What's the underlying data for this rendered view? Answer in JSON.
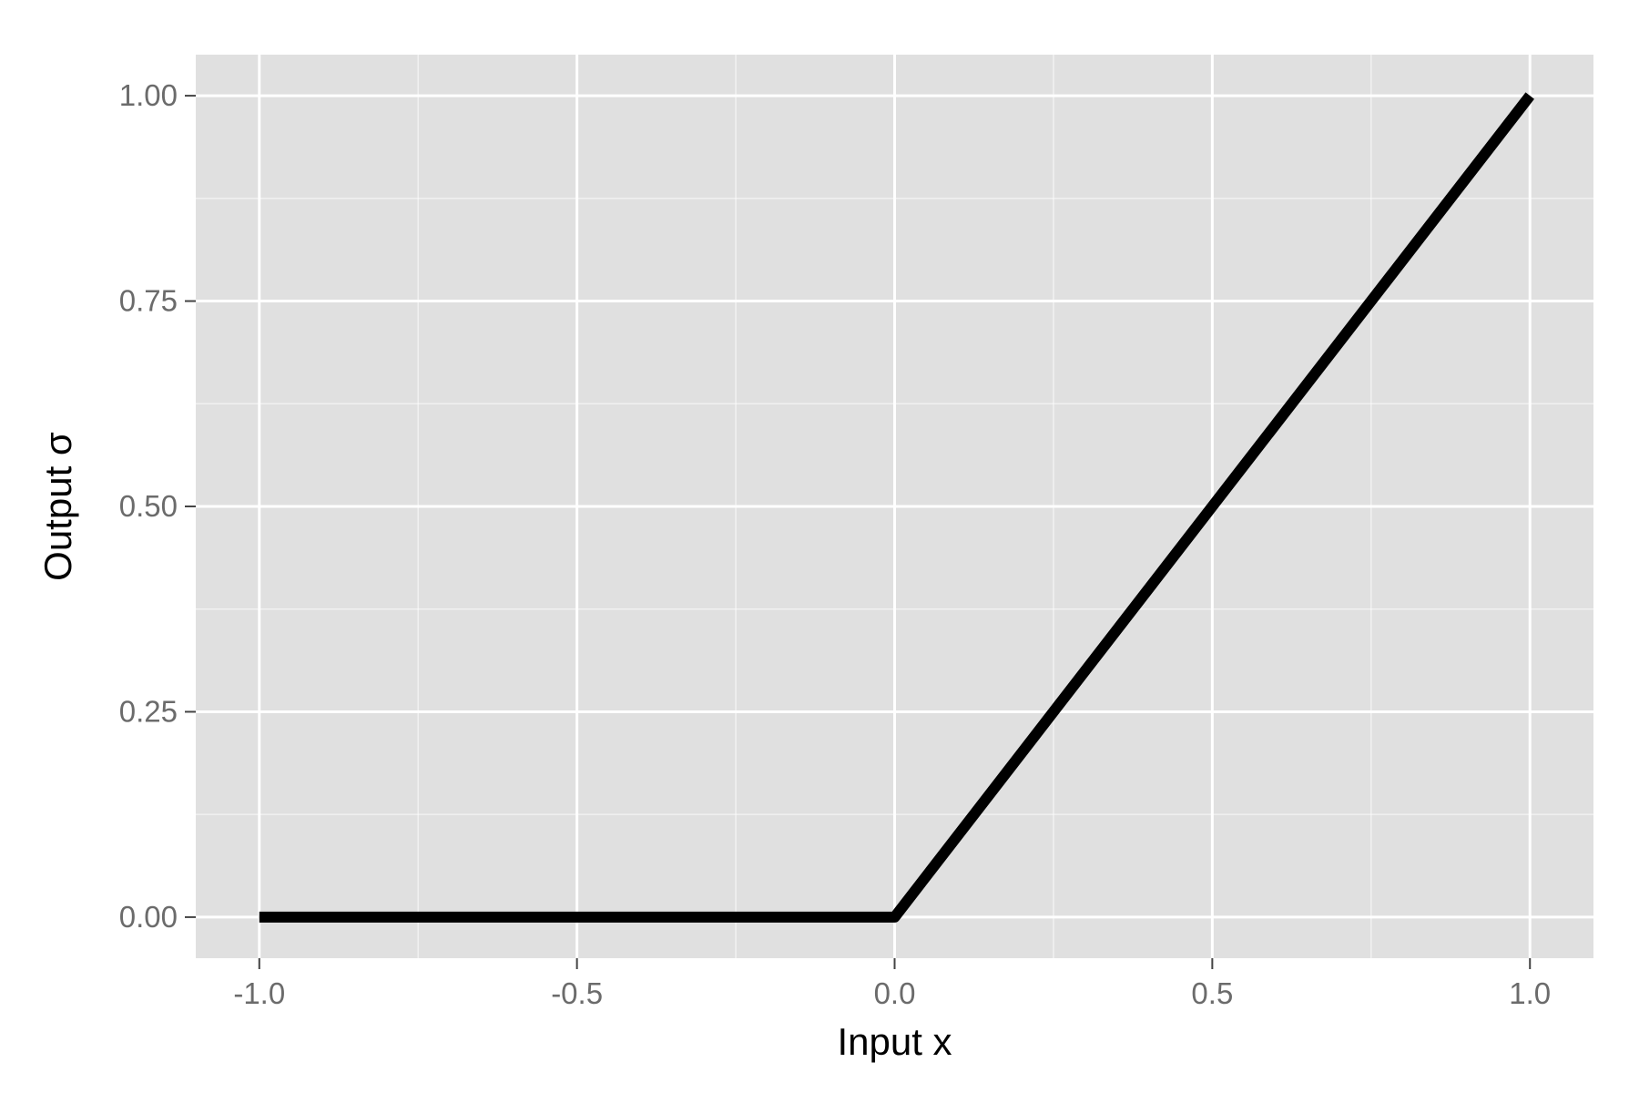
{
  "chart_data": {
    "type": "line",
    "xlabel": "Input x",
    "ylabel": "Output σ",
    "xlim": [
      -1.1,
      1.1
    ],
    "ylim": [
      -0.05,
      1.05
    ],
    "x_ticks": [
      -1.0,
      -0.5,
      0.0,
      0.5,
      1.0
    ],
    "x_tick_labels": [
      "-1.0",
      "-0.5",
      "0.0",
      "0.5",
      "1.0"
    ],
    "x_minor_ticks": [
      -0.75,
      -0.25,
      0.25,
      0.75
    ],
    "y_ticks": [
      0.0,
      0.25,
      0.5,
      0.75,
      1.0
    ],
    "y_tick_labels": [
      "0.00",
      "0.25",
      "0.50",
      "0.75",
      "1.00"
    ],
    "y_minor_ticks": [
      0.125,
      0.375,
      0.625,
      0.875
    ],
    "grid": true,
    "legend": "none",
    "series": [
      {
        "x": [
          -1.0,
          -0.5,
          0.0,
          0.5,
          1.0
        ],
        "y": [
          0.0,
          0.0,
          0.0,
          0.5,
          1.0
        ],
        "color": "#000000"
      }
    ],
    "panel_color": "#e0e0e0",
    "grid_color": "#ffffff"
  }
}
